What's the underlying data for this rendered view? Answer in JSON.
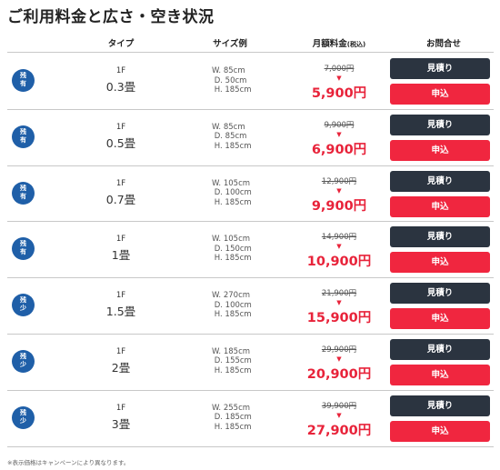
{
  "page_title": "ご利用料金と広さ・空き状況",
  "table_header": {
    "type": "タイプ",
    "size": "サイズ例",
    "price": "月額料金",
    "price_note": "(税込)",
    "contact": "お問合せ"
  },
  "size_labels": {
    "w": "W.",
    "d": "D.",
    "h": "H."
  },
  "price_arrow": "▼",
  "buttons": {
    "quote": "見積り",
    "apply": "申込"
  },
  "rows": [
    {
      "badge": [
        "残",
        "有"
      ],
      "floor": "1F",
      "area": "0.3畳",
      "w": "85cm",
      "d": "50cm",
      "h": "185cm",
      "old_price": "7,000円",
      "new_price": "5,900円"
    },
    {
      "badge": [
        "残",
        "有"
      ],
      "floor": "1F",
      "area": "0.5畳",
      "w": "85cm",
      "d": "85cm",
      "h": "185cm",
      "old_price": "9,900円",
      "new_price": "6,900円"
    },
    {
      "badge": [
        "残",
        "有"
      ],
      "floor": "1F",
      "area": "0.7畳",
      "w": "105cm",
      "d": "100cm",
      "h": "185cm",
      "old_price": "12,900円",
      "new_price": "9,900円"
    },
    {
      "badge": [
        "残",
        "有"
      ],
      "floor": "1F",
      "area": "1畳",
      "w": "105cm",
      "d": "150cm",
      "h": "185cm",
      "old_price": "14,900円",
      "new_price": "10,900円"
    },
    {
      "badge": [
        "残",
        "少"
      ],
      "floor": "1F",
      "area": "1.5畳",
      "w": "270cm",
      "d": "100cm",
      "h": "185cm",
      "old_price": "21,900円",
      "new_price": "15,900円"
    },
    {
      "badge": [
        "残",
        "少"
      ],
      "floor": "1F",
      "area": "2畳",
      "w": "185cm",
      "d": "155cm",
      "h": "185cm",
      "old_price": "29,900円",
      "new_price": "20,900円"
    },
    {
      "badge": [
        "残",
        "少"
      ],
      "floor": "1F",
      "area": "3畳",
      "w": "255cm",
      "d": "185cm",
      "h": "185cm",
      "old_price": "39,900円",
      "new_price": "27,900円"
    }
  ],
  "footnote": "※表示価格はキャンペーンにより異なります。",
  "colors": {
    "badge": "#1f5fa8",
    "price": "#e8233a",
    "quote_button": "#2b3440",
    "apply_button": "#f0263f"
  }
}
